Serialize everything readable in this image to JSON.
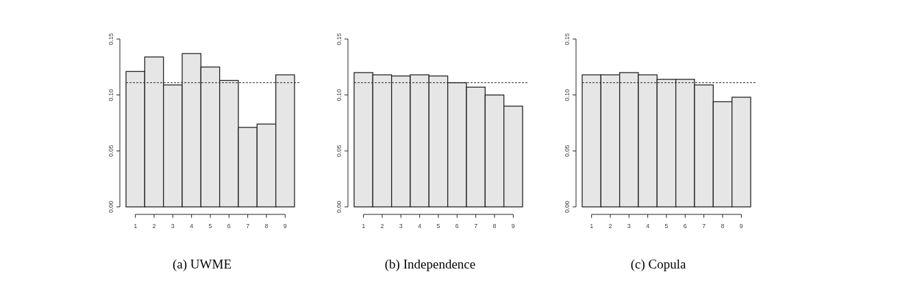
{
  "chart_data": [
    {
      "type": "bar",
      "title": "(a) UWME",
      "categories": [
        "1",
        "2",
        "3",
        "4",
        "5",
        "6",
        "7",
        "8",
        "9"
      ],
      "values": [
        0.121,
        0.134,
        0.109,
        0.137,
        0.125,
        0.113,
        0.071,
        0.074,
        0.118
      ],
      "color": "#e6e6e6",
      "ylim": [
        0,
        0.15
      ],
      "yticks": [
        {
          "value": 0,
          "label": "0.00"
        },
        {
          "value": 0.05,
          "label": "0.05"
        },
        {
          "value": 0.1,
          "label": "0.10"
        },
        {
          "value": 0.15,
          "label": "0.15"
        }
      ],
      "ref_lines": [
        {
          "axis": "y",
          "value": 0.111,
          "line_style": "dashed"
        }
      ]
    },
    {
      "type": "bar",
      "title": "(b) Independence",
      "categories": [
        "1",
        "2",
        "3",
        "4",
        "5",
        "6",
        "7",
        "8",
        "9"
      ],
      "values": [
        0.12,
        0.118,
        0.117,
        0.118,
        0.117,
        0.111,
        0.107,
        0.1,
        0.09
      ],
      "color": "#e6e6e6",
      "ylim": [
        0,
        0.15
      ],
      "yticks": [
        {
          "value": 0,
          "label": "0.00"
        },
        {
          "value": 0.05,
          "label": "0.05"
        },
        {
          "value": 0.1,
          "label": "0.10"
        },
        {
          "value": 0.15,
          "label": "0.15"
        }
      ],
      "ref_lines": [
        {
          "axis": "y",
          "value": 0.111,
          "line_style": "dashed"
        }
      ]
    },
    {
      "type": "bar",
      "title": "(c) Copula",
      "categories": [
        "1",
        "2",
        "3",
        "4",
        "5",
        "6",
        "7",
        "8",
        "9"
      ],
      "values": [
        0.118,
        0.118,
        0.12,
        0.118,
        0.114,
        0.114,
        0.109,
        0.094,
        0.098
      ],
      "color": "#e6e6e6",
      "ylim": [
        0,
        0.15
      ],
      "yticks": [
        {
          "value": 0,
          "label": "0.00"
        },
        {
          "value": 0.05,
          "label": "0.05"
        },
        {
          "value": 0.1,
          "label": "0.10"
        },
        {
          "value": 0.15,
          "label": "0.15"
        }
      ],
      "ref_lines": [
        {
          "axis": "y",
          "value": 0.111,
          "line_style": "dashed"
        }
      ]
    }
  ]
}
